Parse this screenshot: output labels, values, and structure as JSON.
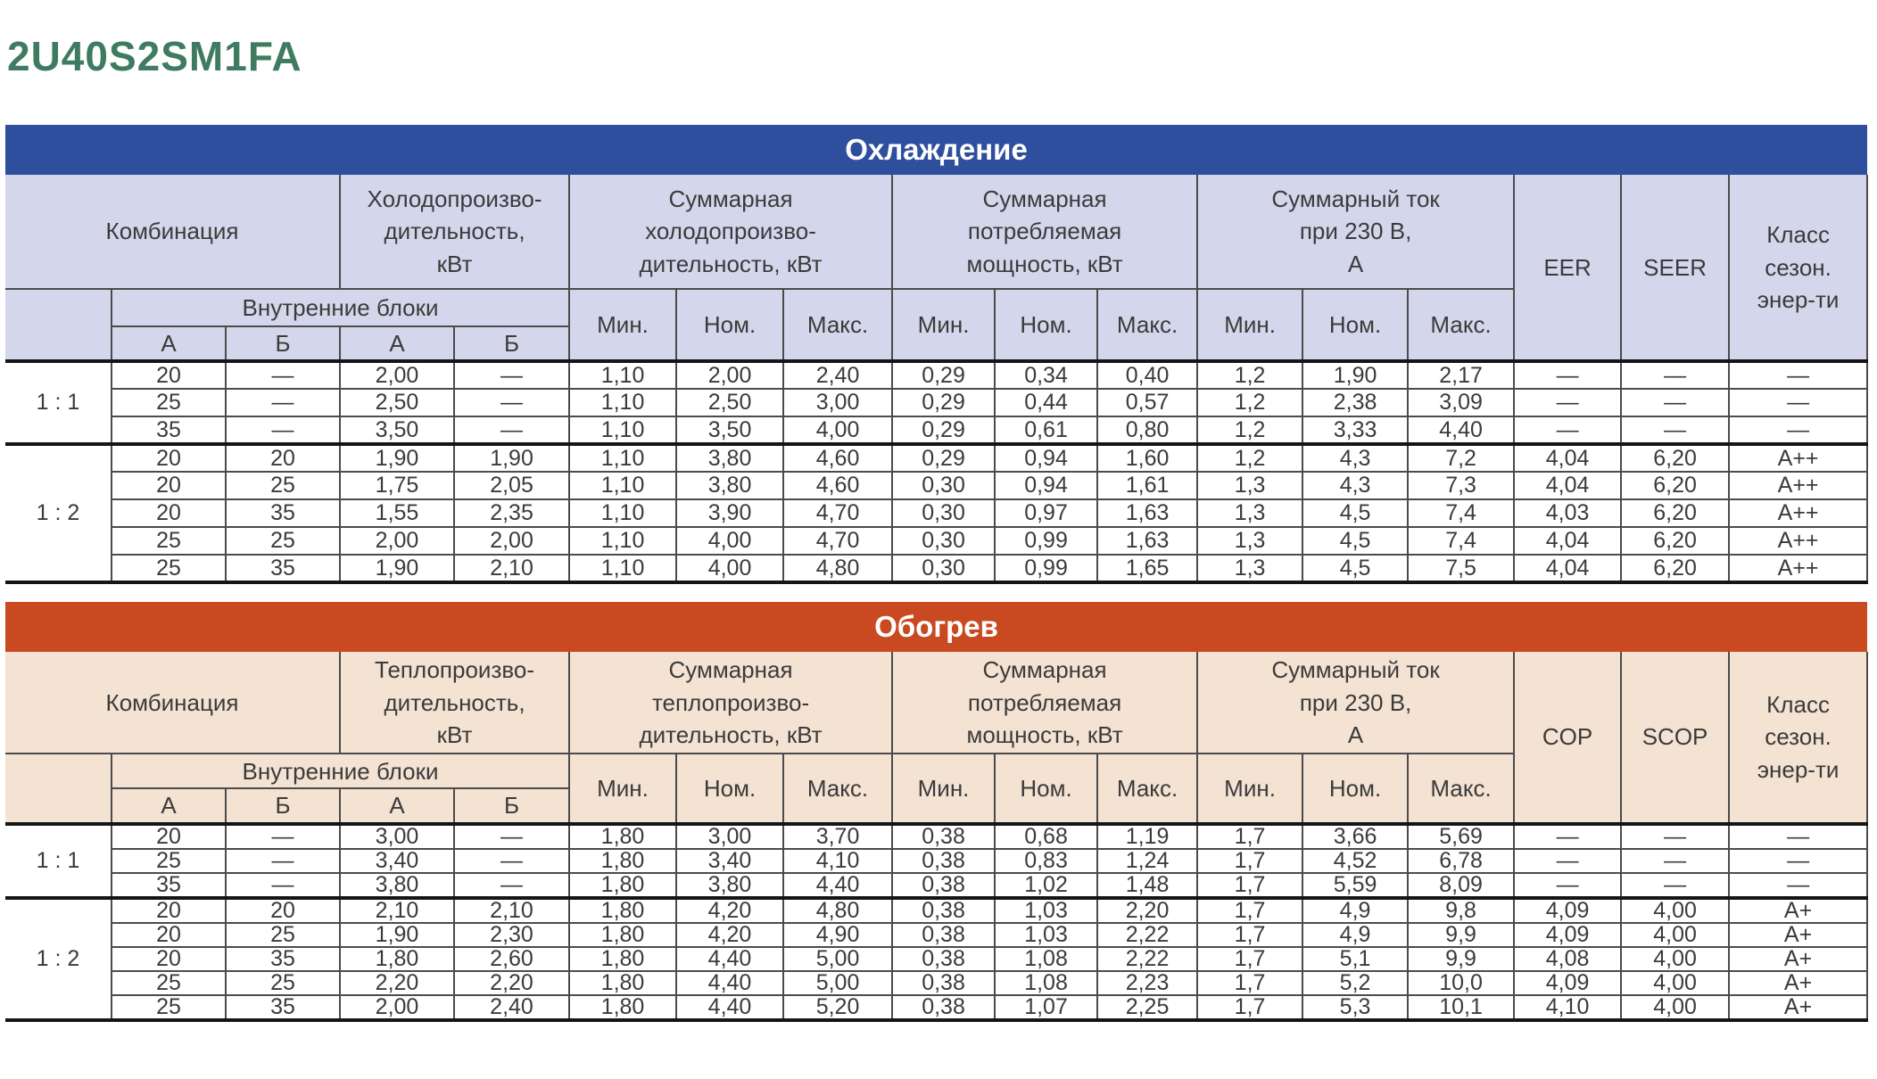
{
  "page": {
    "title": "2U40S2SM1FA"
  },
  "colors": {
    "title_color": "#3F7B60",
    "cooling_accent": "#2E4F9D",
    "cooling_header_bg": "#D4D6EC",
    "heating_accent": "#C94A20",
    "heating_header_bg": "#F4E2D2",
    "text_color": "#3B3B3B"
  },
  "tables": [
    {
      "band_title": "Охлаждение",
      "header": {
        "combination": "Комбинация",
        "capacity": "Холодопроизво-\nдительность,\nкВт",
        "total_capacity": "Суммарная\nхолодопроизво-\nдительность, кВт",
        "total_power": "Суммарная\nпотребляемая\nмощность, кВт",
        "total_current": "Суммарный ток\nпри 230 В,\nА",
        "efficiency": "EER",
        "seasonal_efficiency": "SEER",
        "energy_class": "Класс\nсезон.\nэнер-ти",
        "indoor_units": "Внутренние блоки",
        "col_a": "А",
        "col_b": "Б",
        "min": "Мин.",
        "nom": "Ном.",
        "max": "Макс."
      },
      "groups": [
        {
          "ratio": "1 : 1",
          "rows": [
            [
              "20",
              "—",
              "2,00",
              "—",
              "1,10",
              "2,00",
              "2,40",
              "0,29",
              "0,34",
              "0,40",
              "1,2",
              "1,90",
              "2,17",
              "—",
              "—",
              "—"
            ],
            [
              "25",
              "—",
              "2,50",
              "—",
              "1,10",
              "2,50",
              "3,00",
              "0,29",
              "0,44",
              "0,57",
              "1,2",
              "2,38",
              "3,09",
              "—",
              "—",
              "—"
            ],
            [
              "35",
              "—",
              "3,50",
              "—",
              "1,10",
              "3,50",
              "4,00",
              "0,29",
              "0,61",
              "0,80",
              "1,2",
              "3,33",
              "4,40",
              "—",
              "—",
              "—"
            ]
          ]
        },
        {
          "ratio": "1 : 2",
          "rows": [
            [
              "20",
              "20",
              "1,90",
              "1,90",
              "1,10",
              "3,80",
              "4,60",
              "0,29",
              "0,94",
              "1,60",
              "1,2",
              "4,3",
              "7,2",
              "4,04",
              "6,20",
              "A++"
            ],
            [
              "20",
              "25",
              "1,75",
              "2,05",
              "1,10",
              "3,80",
              "4,60",
              "0,30",
              "0,94",
              "1,61",
              "1,3",
              "4,3",
              "7,3",
              "4,04",
              "6,20",
              "A++"
            ],
            [
              "20",
              "35",
              "1,55",
              "2,35",
              "1,10",
              "3,90",
              "4,70",
              "0,30",
              "0,97",
              "1,63",
              "1,3",
              "4,5",
              "7,4",
              "4,03",
              "6,20",
              "A++"
            ],
            [
              "25",
              "25",
              "2,00",
              "2,00",
              "1,10",
              "4,00",
              "4,70",
              "0,30",
              "0,99",
              "1,63",
              "1,3",
              "4,5",
              "7,4",
              "4,04",
              "6,20",
              "A++"
            ],
            [
              "25",
              "35",
              "1,90",
              "2,10",
              "1,10",
              "4,00",
              "4,80",
              "0,30",
              "0,99",
              "1,65",
              "1,3",
              "4,5",
              "7,5",
              "4,04",
              "6,20",
              "A++"
            ]
          ]
        }
      ]
    },
    {
      "band_title": "Обогрев",
      "header": {
        "combination": "Комбинация",
        "capacity": "Теплопроизво-\nдительность,\nкВт",
        "total_capacity": "Суммарная\nтеплопроизво-\nдительность, кВт",
        "total_power": "Суммарная\nпотребляемая\nмощность, кВт",
        "total_current": "Суммарный ток\nпри 230 В,\nА",
        "efficiency": "COP",
        "seasonal_efficiency": "SCOP",
        "energy_class": "Класс\nсезон.\nэнер-ти",
        "indoor_units": "Внутренние блоки",
        "col_a": "А",
        "col_b": "Б",
        "min": "Мин.",
        "nom": "Ном.",
        "max": "Макс."
      },
      "groups": [
        {
          "ratio": "1 : 1",
          "rows": [
            [
              "20",
              "—",
              "3,00",
              "—",
              "1,80",
              "3,00",
              "3,70",
              "0,38",
              "0,68",
              "1,19",
              "1,7",
              "3,66",
              "5,69",
              "—",
              "—",
              "—"
            ],
            [
              "25",
              "—",
              "3,40",
              "—",
              "1,80",
              "3,40",
              "4,10",
              "0,38",
              "0,83",
              "1,24",
              "1,7",
              "4,52",
              "6,78",
              "—",
              "—",
              "—"
            ],
            [
              "35",
              "—",
              "3,80",
              "—",
              "1,80",
              "3,80",
              "4,40",
              "0,38",
              "1,02",
              "1,48",
              "1,7",
              "5,59",
              "8,09",
              "—",
              "—",
              "—"
            ]
          ]
        },
        {
          "ratio": "1 : 2",
          "rows": [
            [
              "20",
              "20",
              "2,10",
              "2,10",
              "1,80",
              "4,20",
              "4,80",
              "0,38",
              "1,03",
              "2,20",
              "1,7",
              "4,9",
              "9,8",
              "4,09",
              "4,00",
              "A+"
            ],
            [
              "20",
              "25",
              "1,90",
              "2,30",
              "1,80",
              "4,20",
              "4,90",
              "0,38",
              "1,03",
              "2,22",
              "1,7",
              "4,9",
              "9,9",
              "4,09",
              "4,00",
              "A+"
            ],
            [
              "20",
              "35",
              "1,80",
              "2,60",
              "1,80",
              "4,40",
              "5,00",
              "0,38",
              "1,08",
              "2,22",
              "1,7",
              "5,1",
              "9,9",
              "4,08",
              "4,00",
              "A+"
            ],
            [
              "25",
              "25",
              "2,20",
              "2,20",
              "1,80",
              "4,40",
              "5,00",
              "0,38",
              "1,08",
              "2,23",
              "1,7",
              "5,2",
              "10,0",
              "4,09",
              "4,00",
              "A+"
            ],
            [
              "25",
              "35",
              "2,00",
              "2,40",
              "1,80",
              "4,40",
              "5,20",
              "0,38",
              "1,07",
              "2,25",
              "1,7",
              "5,3",
              "10,1",
              "4,10",
              "4,00",
              "A+"
            ]
          ]
        }
      ]
    }
  ]
}
